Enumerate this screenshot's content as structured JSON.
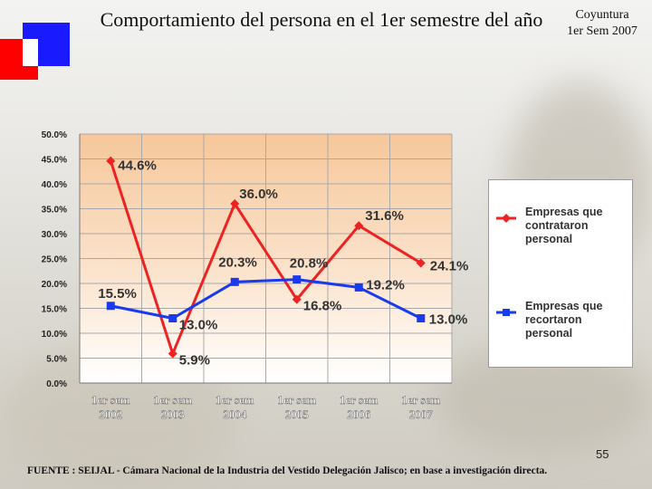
{
  "header": {
    "title": "Comportamiento del persona en el 1er semestre del año",
    "badge_line1": "Coyuntura",
    "badge_line2": "1er Sem 2007"
  },
  "footer": {
    "page_number": "55",
    "source": "FUENTE : SEIJAL - Cámara Nacional de la Industria del Vestido Delegación Jalisco; en base a investigación directa."
  },
  "colors": {
    "series_contrataron": "#ee2222",
    "series_recortaron": "#1a3aee",
    "deco_red": "#ff0000",
    "deco_blue": "#1a1aff"
  },
  "chart_data": {
    "type": "line",
    "categories": [
      "1er sem\n2002",
      "1er sem\n2003",
      "1er sem\n2004",
      "1er sem\n2005",
      "1er sem\n2006",
      "1er sem\n2007"
    ],
    "series": [
      {
        "name": "Empresas que contrataron personal",
        "values": [
          44.6,
          5.9,
          36.0,
          16.8,
          31.6,
          24.1
        ],
        "labels": [
          "44.6%",
          "5.9%",
          "36.0%",
          "16.8%",
          "31.6%",
          "24.1%"
        ],
        "color": "#ee2222",
        "marker": "diamond"
      },
      {
        "name": "Empresas que recortaron personal",
        "values": [
          15.5,
          13.0,
          20.3,
          20.8,
          19.2,
          13.0
        ],
        "labels": [
          "15.5%",
          "13.0%",
          "20.3%",
          "20.8%",
          "19.2%",
          "13.0%"
        ],
        "color": "#1a3aee",
        "marker": "square"
      }
    ],
    "ylim": [
      0,
      50
    ],
    "yticks": [
      "0.0%",
      "5.0%",
      "10.0%",
      "15.0%",
      "20.0%",
      "25.0%",
      "30.0%",
      "35.0%",
      "40.0%",
      "45.0%",
      "50.0%"
    ],
    "grid": true,
    "legend": "right",
    "xlabel": "",
    "ylabel": ""
  }
}
